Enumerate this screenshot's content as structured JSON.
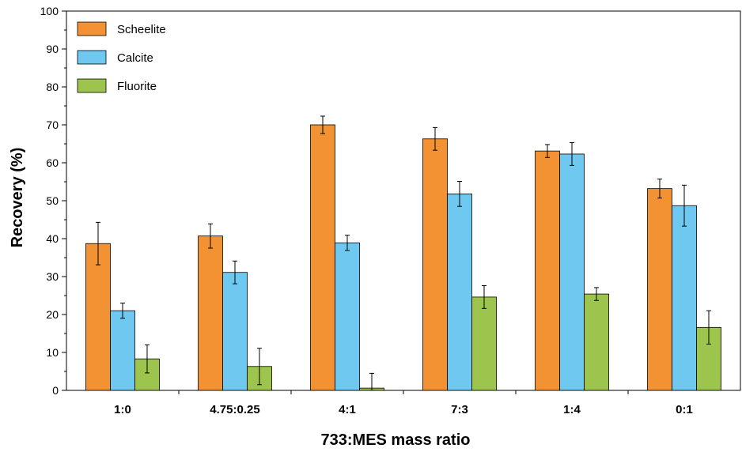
{
  "chart_data": {
    "type": "bar",
    "categories": [
      "1:0",
      "4.75:0.25",
      "4:1",
      "7:3",
      "1:4",
      "0:1"
    ],
    "series": [
      {
        "name": "Scheelite",
        "color": "#F39232",
        "values": [
          38.7,
          40.7,
          70.0,
          66.3,
          63.1,
          53.2
        ],
        "errors": [
          5.6,
          3.2,
          2.3,
          3.0,
          1.7,
          2.5
        ]
      },
      {
        "name": "Calcite",
        "color": "#6EC8EF",
        "values": [
          21.0,
          31.1,
          38.9,
          51.8,
          62.3,
          48.7
        ],
        "errors": [
          2.0,
          3.0,
          2.0,
          3.3,
          3.0,
          5.4
        ]
      },
      {
        "name": "Fluorite",
        "color": "#9DC44D",
        "values": [
          8.3,
          6.3,
          0.6,
          24.6,
          25.4,
          16.6
        ],
        "errors": [
          3.7,
          4.8,
          3.9,
          3.0,
          1.7,
          4.4
        ]
      }
    ],
    "xlabel": "733:MES mass ratio",
    "ylabel": "Recovery (%)",
    "ylim": [
      0,
      100
    ],
    "yticks": [
      "0",
      "10",
      "20",
      "30",
      "40",
      "50",
      "60",
      "70",
      "80",
      "90",
      "100"
    ],
    "grid": false,
    "legend_position": "top-left"
  }
}
